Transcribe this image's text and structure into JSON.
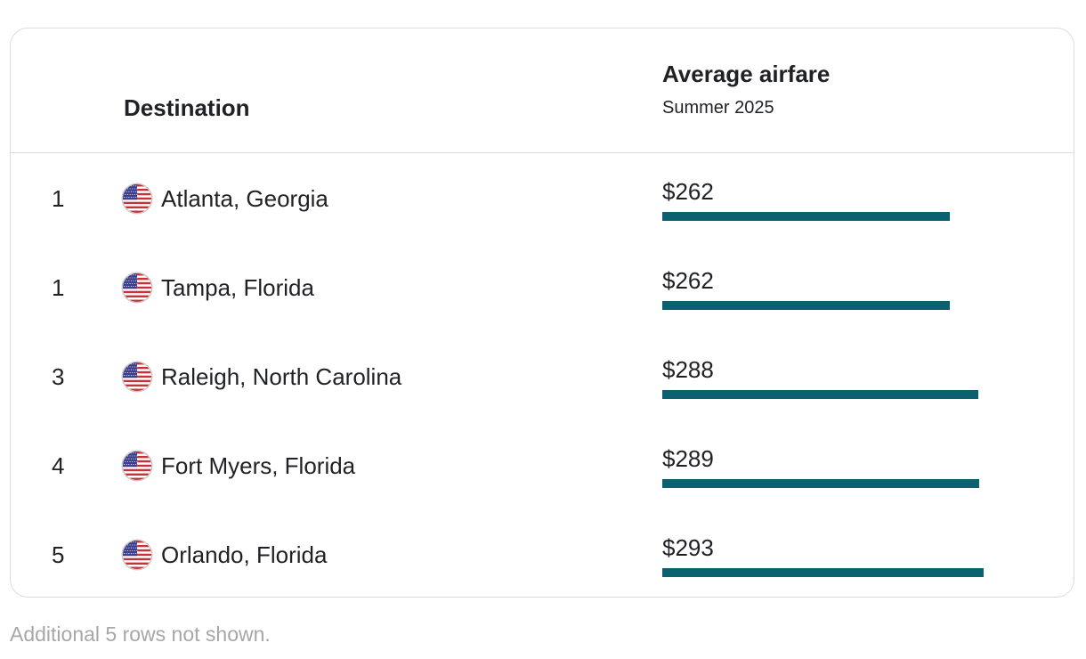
{
  "table": {
    "headers": {
      "destination": "Destination",
      "airfare_title": "Average airfare",
      "airfare_subtitle": "Summer 2025"
    },
    "bar_max_value": 300,
    "bar_color": "#0c6170",
    "rows": [
      {
        "rank": "1",
        "flag_icon": "us-flag-icon",
        "destination": "Atlanta, Georgia",
        "price": "$262",
        "value": 262
      },
      {
        "rank": "1",
        "flag_icon": "us-flag-icon",
        "destination": "Tampa, Florida",
        "price": "$262",
        "value": 262
      },
      {
        "rank": "3",
        "flag_icon": "us-flag-icon",
        "destination": "Raleigh, North Carolina",
        "price": "$288",
        "value": 288
      },
      {
        "rank": "4",
        "flag_icon": "us-flag-icon",
        "destination": "Fort Myers, Florida",
        "price": "$289",
        "value": 289
      },
      {
        "rank": "5",
        "flag_icon": "us-flag-icon",
        "destination": "Orlando, Florida",
        "price": "$293",
        "value": 293
      }
    ]
  },
  "footer": {
    "note": "Additional 5 rows not shown."
  }
}
